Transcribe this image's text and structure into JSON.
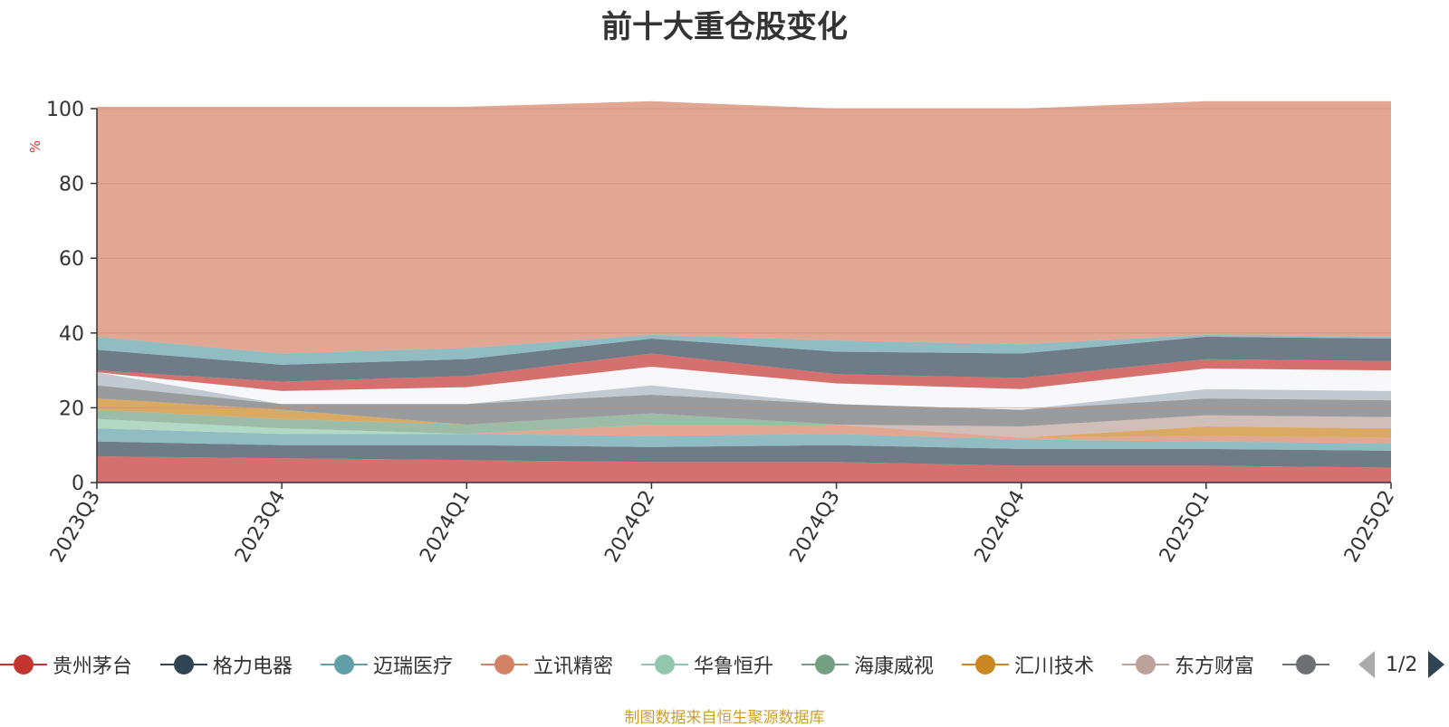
{
  "chart_data": {
    "type": "area",
    "stacked": true,
    "title": "前十大重仓股变化",
    "ylabel": "%",
    "ylim": [
      0,
      100
    ],
    "yticks": [
      0,
      20,
      40,
      60,
      80,
      100
    ],
    "grid": true,
    "legend_position": "bottom",
    "categories": [
      "2023Q3",
      "2023Q4",
      "2024Q1",
      "2024Q2",
      "2024Q3",
      "2024Q4",
      "2025Q1",
      "2025Q2"
    ],
    "series": [
      {
        "name": "贵州茅台",
        "color": "#c23531",
        "values": [
          7.0,
          6.5,
          6.0,
          5.5,
          5.5,
          4.5,
          4.5,
          4.0
        ]
      },
      {
        "name": "格力电器",
        "color": "#2f4554",
        "values": [
          4.0,
          3.5,
          4.0,
          4.0,
          4.5,
          4.5,
          4.5,
          4.5
        ]
      },
      {
        "name": "迈瑞医疗",
        "color": "#61a0a8",
        "values": [
          3.5,
          3.0,
          3.0,
          3.0,
          3.0,
          2.5,
          2.0,
          2.0
        ]
      },
      {
        "name": "立讯精密",
        "color": "#d48265",
        "values": [
          0,
          0,
          0,
          3.0,
          2.5,
          0.5,
          1.5,
          1.5
        ]
      },
      {
        "name": "华鲁恒升",
        "color": "#91c7ae",
        "values": [
          2.5,
          1.5,
          0,
          0,
          0,
          0,
          0,
          0
        ]
      },
      {
        "name": "海康威视",
        "color": "#749f83",
        "values": [
          2.5,
          2.5,
          2.5,
          3.0,
          0,
          0,
          0,
          0
        ]
      },
      {
        "name": "汇川技术",
        "color": "#ca8622",
        "values": [
          3.0,
          2.5,
          0,
          0,
          0,
          0,
          2.5,
          2.5
        ]
      },
      {
        "name": "东方财富",
        "color": "#bda29a",
        "values": [
          0,
          0,
          0,
          0,
          0,
          3.0,
          3.0,
          3.0
        ]
      },
      {
        "name": "",
        "color": "#6e7074",
        "values": [
          3.5,
          1.5,
          5.5,
          5.0,
          5.5,
          4.5,
          4.5,
          4.5
        ]
      },
      {
        "name": "",
        "color": "#a8b4bd",
        "values": [
          3.5,
          0,
          0,
          2.5,
          0,
          0,
          2.5,
          2.5
        ]
      },
      {
        "name": "",
        "color": "#f5f5fa",
        "values": [
          0,
          3.5,
          4.5,
          5.0,
          5.5,
          5.5,
          5.5,
          5.5
        ]
      },
      {
        "name": "",
        "color": "#c23531",
        "values": [
          0.5,
          2.5,
          3.0,
          3.5,
          2.5,
          3.0,
          2.5,
          2.5
        ]
      },
      {
        "name": "",
        "color": "#2f4554",
        "values": [
          5.5,
          4.5,
          4.5,
          4.0,
          6.0,
          6.5,
          6.0,
          6.0
        ]
      },
      {
        "name": "",
        "color": "#61a0a8",
        "values": [
          3.5,
          3.0,
          3.0,
          1.0,
          3.0,
          2.5,
          0.5,
          0.5
        ]
      },
      {
        "name": "",
        "color": "#d48265",
        "values": [
          61.5,
          66.0,
          64.5,
          62.5,
          62.0,
          63.0,
          62.5,
          63.0
        ]
      }
    ]
  },
  "legend": {
    "items": [
      {
        "name": "贵州茅台",
        "color": "#c23531"
      },
      {
        "name": "格力电器",
        "color": "#2f4554"
      },
      {
        "name": "迈瑞医疗",
        "color": "#61a0a8"
      },
      {
        "name": "立讯精密",
        "color": "#d48265"
      },
      {
        "name": "华鲁恒升",
        "color": "#91c7ae"
      },
      {
        "name": "海康威视",
        "color": "#749f83"
      },
      {
        "name": "汇川技术",
        "color": "#ca8622"
      },
      {
        "name": "东方财富",
        "color": "#bda29a"
      },
      {
        "name": "",
        "color": "#6e7074"
      }
    ],
    "pager_text": "1/2"
  },
  "source_note": "制图数据来自恒生聚源数据库"
}
